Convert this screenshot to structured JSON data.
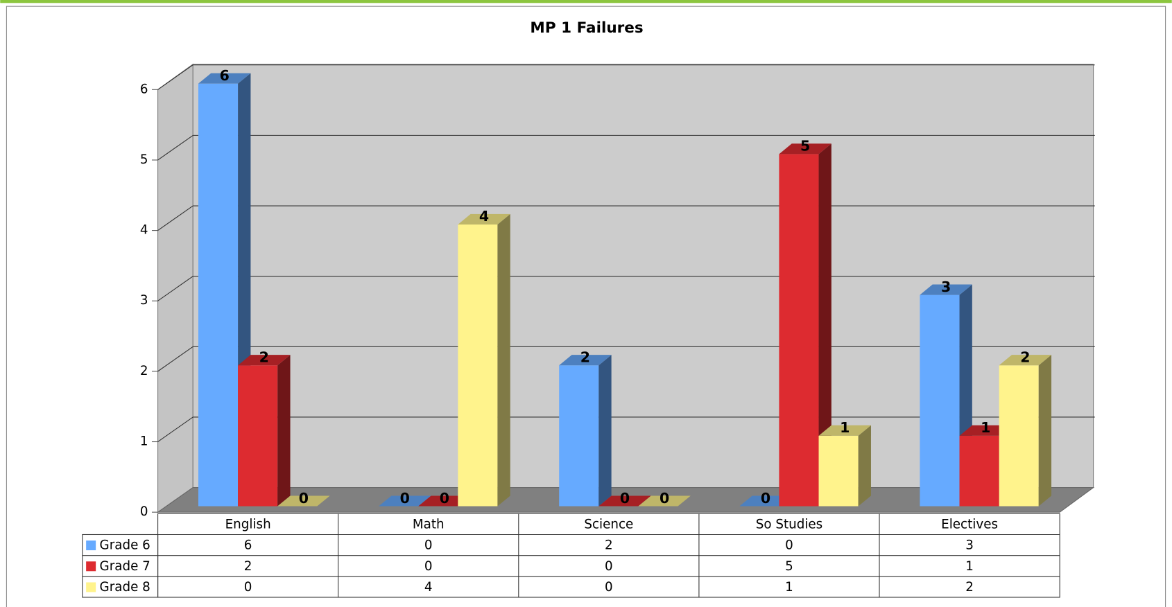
{
  "chart_data": {
    "type": "bar3d",
    "title": "MP 1 Failures",
    "categories": [
      "English",
      "Math",
      "Science",
      "So Studies",
      "Electives"
    ],
    "series": [
      {
        "name": "Grade 6",
        "color": "#66aaff",
        "values": [
          6,
          0,
          2,
          0,
          3
        ]
      },
      {
        "name": "Grade 7",
        "color": "#dd2b30",
        "values": [
          2,
          0,
          0,
          5,
          1
        ]
      },
      {
        "name": "Grade 8",
        "color": "#fff38c",
        "values": [
          0,
          4,
          0,
          1,
          2
        ]
      }
    ],
    "ylim": [
      0,
      6
    ],
    "yticks": [
      0,
      1,
      2,
      3,
      4,
      5,
      6
    ],
    "grid": true
  }
}
